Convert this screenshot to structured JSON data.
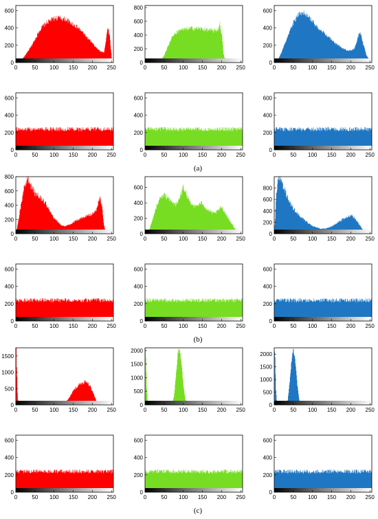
{
  "colors": {
    "red": "#ff0000",
    "green": "#77dd22",
    "blue": "#1f77c4"
  },
  "captions": [
    "(a)",
    "(b)",
    "(c)"
  ],
  "chart_data": [
    {
      "id": "a-orig-r",
      "type": "area",
      "color": "red",
      "x": [
        0,
        10,
        20,
        30,
        40,
        50,
        60,
        70,
        80,
        90,
        100,
        110,
        120,
        130,
        140,
        150,
        160,
        170,
        180,
        190,
        200,
        210,
        220,
        230,
        235,
        240,
        245,
        250,
        255
      ],
      "y": [
        0,
        20,
        60,
        120,
        190,
        270,
        360,
        420,
        460,
        490,
        510,
        520,
        510,
        500,
        470,
        440,
        410,
        370,
        320,
        270,
        220,
        170,
        130,
        120,
        250,
        420,
        300,
        60,
        0
      ],
      "ylim": [
        0,
        660
      ],
      "yticks": [
        0,
        200,
        400,
        600
      ],
      "xticks": [
        0,
        50,
        100,
        150,
        200,
        250
      ],
      "noise": 0.06
    },
    {
      "id": "a-orig-g",
      "type": "area",
      "color": "green",
      "x": [
        0,
        20,
        30,
        40,
        50,
        60,
        70,
        80,
        90,
        100,
        110,
        120,
        130,
        140,
        150,
        160,
        170,
        180,
        190,
        195,
        200,
        205,
        210,
        215,
        255
      ],
      "y": [
        0,
        0,
        5,
        30,
        110,
        250,
        360,
        430,
        460,
        480,
        490,
        500,
        500,
        495,
        490,
        480,
        470,
        460,
        480,
        560,
        420,
        120,
        20,
        0,
        0
      ],
      "ylim": [
        0,
        830
      ],
      "yticks": [
        0,
        200,
        400,
        600,
        800
      ],
      "xticks": [
        0,
        50,
        100,
        150,
        200,
        250
      ],
      "noise": 0.07
    },
    {
      "id": "a-orig-b",
      "type": "area",
      "color": "blue",
      "x": [
        0,
        10,
        20,
        30,
        40,
        50,
        60,
        70,
        80,
        90,
        100,
        110,
        120,
        130,
        140,
        150,
        160,
        170,
        180,
        190,
        200,
        210,
        215,
        220,
        225,
        230,
        240,
        250,
        255
      ],
      "y": [
        0,
        40,
        130,
        250,
        370,
        460,
        540,
        580,
        570,
        530,
        470,
        420,
        380,
        340,
        300,
        260,
        220,
        190,
        160,
        140,
        140,
        170,
        240,
        320,
        330,
        250,
        90,
        20,
        0
      ],
      "ylim": [
        0,
        660
      ],
      "yticks": [
        0,
        200,
        400,
        600
      ],
      "xticks": [
        0,
        50,
        100,
        150,
        200,
        250
      ],
      "noise": 0.06
    },
    {
      "id": "a-enc-r",
      "type": "area",
      "color": "red",
      "x": [
        0,
        255
      ],
      "y": [
        240,
        240
      ],
      "ylim": [
        0,
        660
      ],
      "yticks": [
        0,
        200,
        400,
        600
      ],
      "xticks": [
        0,
        50,
        100,
        150,
        200,
        250
      ],
      "noise": 0.1
    },
    {
      "id": "a-enc-g",
      "type": "area",
      "color": "green",
      "x": [
        0,
        255
      ],
      "y": [
        240,
        240
      ],
      "ylim": [
        0,
        660
      ],
      "yticks": [
        0,
        200,
        400,
        600
      ],
      "xticks": [
        0,
        50,
        100,
        150,
        200,
        250
      ],
      "noise": 0.1
    },
    {
      "id": "a-enc-b",
      "type": "area",
      "color": "blue",
      "x": [
        0,
        255
      ],
      "y": [
        240,
        240
      ],
      "ylim": [
        0,
        660
      ],
      "yticks": [
        0,
        200,
        400,
        600
      ],
      "xticks": [
        0,
        50,
        100,
        150,
        200,
        250
      ],
      "noise": 0.1
    },
    {
      "id": "b-orig-r",
      "type": "area",
      "color": "red",
      "x": [
        0,
        10,
        20,
        30,
        40,
        50,
        60,
        70,
        80,
        90,
        100,
        110,
        120,
        130,
        140,
        150,
        160,
        170,
        180,
        190,
        200,
        210,
        215,
        220,
        225,
        230,
        235,
        240,
        255
      ],
      "y": [
        0,
        300,
        620,
        780,
        660,
        560,
        520,
        480,
        400,
        300,
        220,
        160,
        110,
        110,
        130,
        160,
        190,
        220,
        240,
        260,
        280,
        320,
        450,
        500,
        380,
        120,
        20,
        0,
        0
      ],
      "ylim": [
        0,
        800
      ],
      "yticks": [
        0,
        200,
        400,
        600,
        800
      ],
      "xticks": [
        0,
        50,
        100,
        150,
        200,
        250
      ],
      "noise": 0.08
    },
    {
      "id": "b-orig-g",
      "type": "area",
      "color": "green",
      "x": [
        0,
        10,
        20,
        30,
        40,
        50,
        60,
        70,
        80,
        90,
        100,
        110,
        120,
        130,
        140,
        150,
        160,
        170,
        180,
        190,
        200,
        210,
        220,
        230,
        240,
        255
      ],
      "y": [
        0,
        40,
        200,
        360,
        460,
        500,
        460,
        410,
        380,
        450,
        620,
        480,
        400,
        350,
        380,
        400,
        320,
        290,
        260,
        300,
        350,
        260,
        180,
        100,
        20,
        0
      ],
      "ylim": [
        0,
        740
      ],
      "yticks": [
        0,
        200,
        400,
        600
      ],
      "xticks": [
        0,
        50,
        100,
        150,
        200,
        250
      ],
      "noise": 0.08
    },
    {
      "id": "b-orig-b",
      "type": "area",
      "color": "blue",
      "x": [
        0,
        5,
        10,
        20,
        30,
        40,
        50,
        60,
        70,
        80,
        90,
        100,
        110,
        120,
        130,
        140,
        150,
        160,
        170,
        180,
        190,
        200,
        210,
        220,
        230,
        240,
        255
      ],
      "y": [
        0,
        700,
        1000,
        900,
        700,
        560,
        440,
        360,
        290,
        230,
        180,
        140,
        110,
        90,
        90,
        100,
        130,
        170,
        220,
        260,
        300,
        330,
        280,
        180,
        80,
        20,
        0
      ],
      "ylim": [
        0,
        1000
      ],
      "yticks": [
        0,
        200,
        400,
        600,
        800
      ],
      "xticks": [
        0,
        50,
        100,
        150,
        200,
        250
      ],
      "noise": 0.08
    },
    {
      "id": "b-enc-r",
      "type": "area",
      "color": "red",
      "x": [
        0,
        255
      ],
      "y": [
        240,
        240
      ],
      "ylim": [
        0,
        660
      ],
      "yticks": [
        0,
        200,
        400,
        600
      ],
      "xticks": [
        0,
        50,
        100,
        150,
        200,
        250
      ],
      "noise": 0.1
    },
    {
      "id": "b-enc-g",
      "type": "area",
      "color": "green",
      "x": [
        0,
        255
      ],
      "y": [
        240,
        240
      ],
      "ylim": [
        0,
        660
      ],
      "yticks": [
        0,
        200,
        400,
        600
      ],
      "xticks": [
        0,
        50,
        100,
        150,
        200,
        250
      ],
      "noise": 0.1
    },
    {
      "id": "b-enc-b",
      "type": "area",
      "color": "blue",
      "x": [
        0,
        255
      ],
      "y": [
        240,
        240
      ],
      "ylim": [
        0,
        660
      ],
      "yticks": [
        0,
        200,
        400,
        600
      ],
      "xticks": [
        0,
        50,
        100,
        150,
        200,
        250
      ],
      "noise": 0.1
    },
    {
      "id": "c-orig-r",
      "type": "area",
      "color": "red",
      "x": [
        0,
        1,
        2,
        3,
        4,
        5,
        6,
        8,
        10,
        120,
        130,
        140,
        150,
        160,
        170,
        180,
        190,
        200,
        210,
        215,
        220,
        255
      ],
      "y": [
        0,
        1750,
        1200,
        800,
        400,
        150,
        60,
        20,
        0,
        0,
        80,
        250,
        430,
        560,
        640,
        700,
        640,
        430,
        120,
        20,
        0,
        0
      ],
      "ylim": [
        0,
        1750
      ],
      "yticks": [
        0,
        500,
        1000,
        1500
      ],
      "xticks": [
        0,
        50,
        100,
        150,
        200,
        250
      ],
      "noise": 0.1
    },
    {
      "id": "c-orig-g",
      "type": "area",
      "color": "green",
      "x": [
        0,
        1,
        2,
        3,
        4,
        6,
        8,
        60,
        70,
        75,
        80,
        85,
        90,
        95,
        100,
        105,
        110,
        120,
        255
      ],
      "y": [
        0,
        2100,
        1800,
        1200,
        600,
        200,
        0,
        0,
        40,
        300,
        1000,
        1900,
        2100,
        1500,
        700,
        200,
        50,
        0,
        0
      ],
      "ylim": [
        0,
        2100
      ],
      "yticks": [
        0,
        500,
        1000,
        1500,
        2000
      ],
      "xticks": [
        0,
        50,
        100,
        150,
        200,
        250
      ],
      "noise": 0.05
    },
    {
      "id": "c-orig-b",
      "type": "area",
      "color": "blue",
      "x": [
        0,
        1,
        2,
        3,
        4,
        6,
        8,
        30,
        35,
        40,
        45,
        50,
        55,
        60,
        65,
        70,
        80,
        255
      ],
      "y": [
        0,
        2100,
        1800,
        1200,
        600,
        200,
        0,
        0,
        200,
        900,
        1800,
        2200,
        1700,
        800,
        200,
        30,
        0,
        0
      ],
      "ylim": [
        0,
        2250
      ],
      "yticks": [
        0,
        500,
        1000,
        1500,
        2000
      ],
      "xticks": [
        0,
        50,
        100,
        150,
        200,
        250
      ],
      "noise": 0.05
    },
    {
      "id": "c-enc-r",
      "type": "area",
      "color": "red",
      "x": [
        0,
        255
      ],
      "y": [
        240,
        240
      ],
      "ylim": [
        0,
        660
      ],
      "yticks": [
        0,
        200,
        400,
        600
      ],
      "xticks": [
        0,
        50,
        100,
        150,
        200,
        250
      ],
      "noise": 0.1
    },
    {
      "id": "c-enc-g",
      "type": "area",
      "color": "green",
      "x": [
        0,
        255
      ],
      "y": [
        240,
        240
      ],
      "ylim": [
        0,
        660
      ],
      "yticks": [
        0,
        200,
        400,
        600
      ],
      "xticks": [
        0,
        50,
        100,
        150,
        200,
        250
      ],
      "noise": 0.1
    },
    {
      "id": "c-enc-b",
      "type": "area",
      "color": "blue",
      "x": [
        0,
        255
      ],
      "y": [
        240,
        240
      ],
      "ylim": [
        0,
        660
      ],
      "yticks": [
        0,
        200,
        400,
        600
      ],
      "xticks": [
        0,
        50,
        100,
        150,
        200,
        250
      ],
      "noise": 0.1
    }
  ]
}
